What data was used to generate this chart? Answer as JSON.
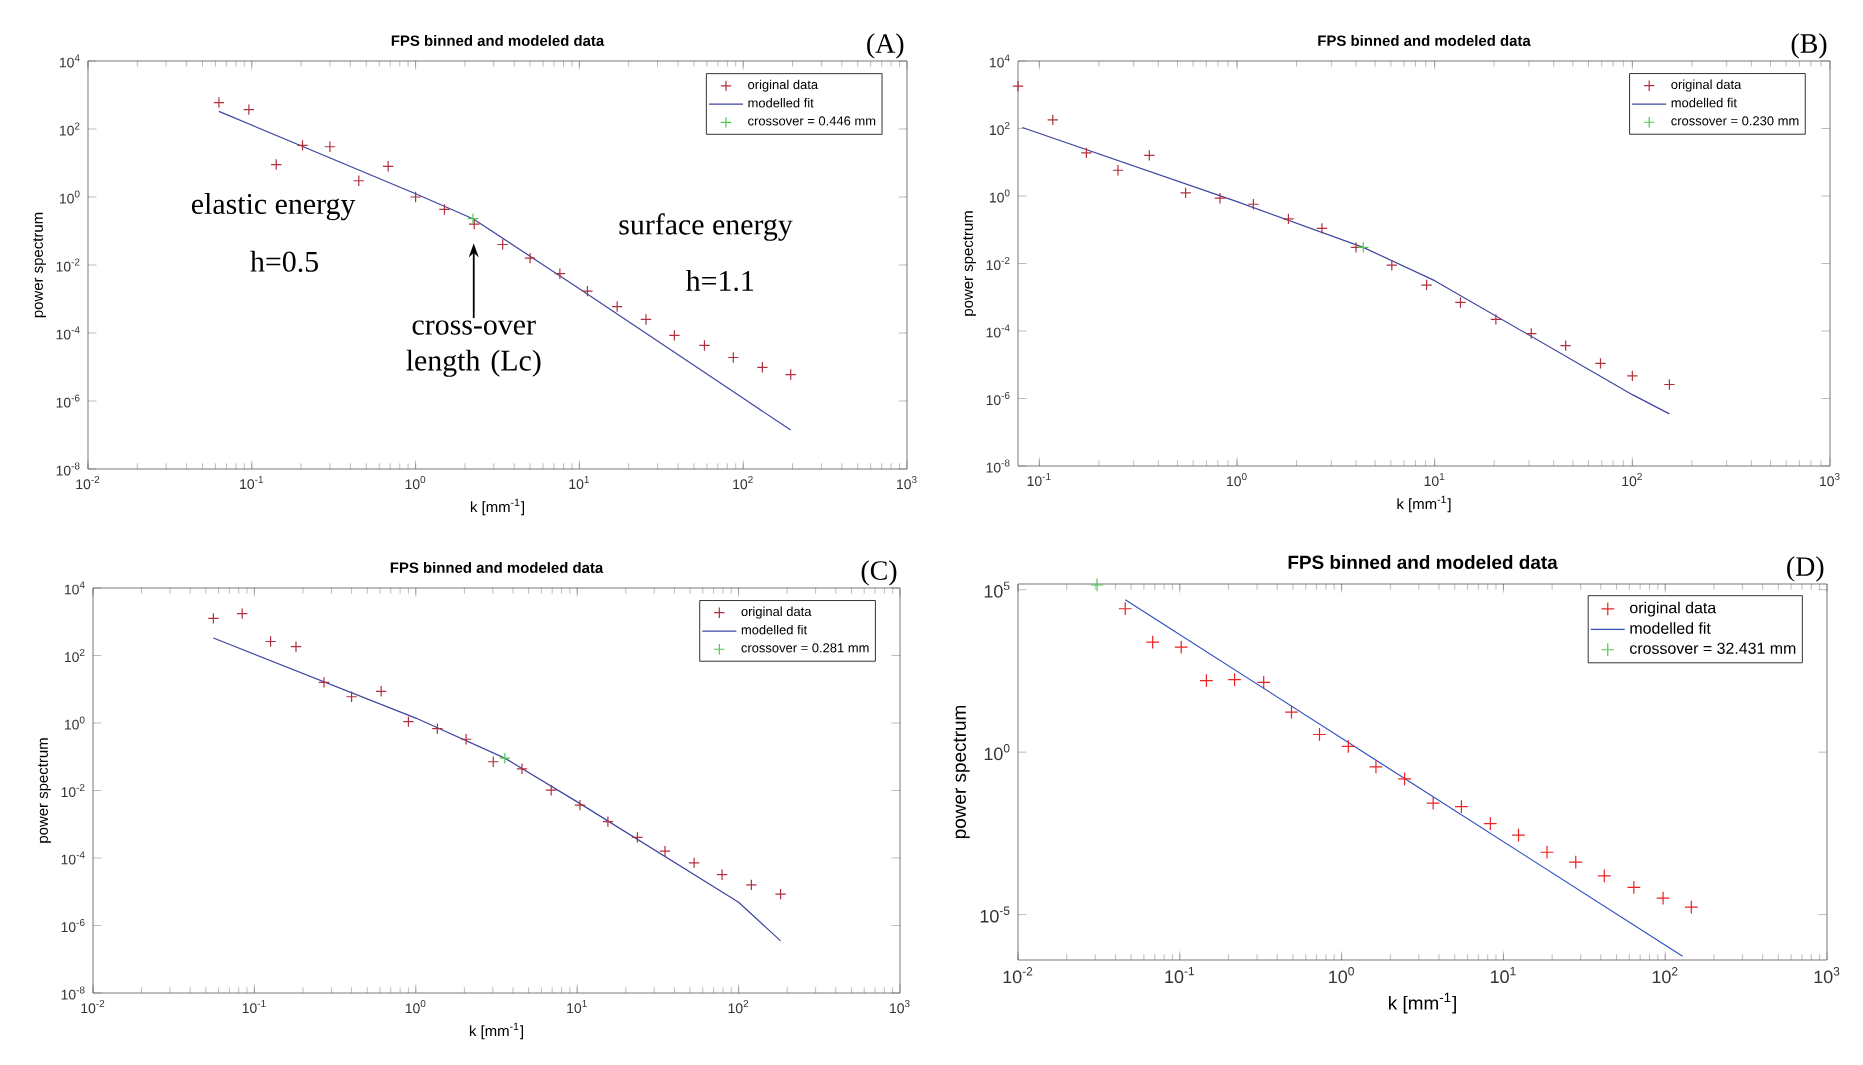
{
  "chart_data": [
    {
      "type": "scatter",
      "title": "FPS binned and modeled data",
      "xlabel": "k [mm$^{-1}$]",
      "ylabel": "power spectrum",
      "log": "xy",
      "legend": "top right",
      "xlim": [
        0.01,
        1000
      ],
      "ylim": [
        1e-08,
        10000
      ],
      "xticks": [
        {
          "value": 0.01,
          "label": "10$^{-2}$"
        },
        {
          "value": 0.1,
          "label": "10$^{-1}$"
        },
        {
          "value": 1,
          "label": "10$^{0}$"
        },
        {
          "value": 10,
          "label": "10$^{1}$"
        },
        {
          "value": 100,
          "label": "10$^{2}$"
        },
        {
          "value": 1000,
          "label": "10$^{3}$"
        }
      ],
      "yticks": [
        {
          "value": 1e-08,
          "label": "10$^{-8}$"
        },
        {
          "value": 1e-06,
          "label": "10$^{-6}$"
        },
        {
          "value": 0.0001,
          "label": "10$^{-4}$"
        },
        {
          "value": 0.01,
          "label": "10$^{-2}$"
        },
        {
          "value": 1,
          "label": "10$^{0}$"
        },
        {
          "value": 100,
          "label": "10$^{2}$"
        },
        {
          "value": 10000,
          "label": "10$^{4}$"
        }
      ],
      "series": [
        {
          "name": "original data",
          "type": "scatter",
          "marker": "cross",
          "color": "#b0303c",
          "x": [
            0.063,
            0.096,
            0.141,
            0.204,
            0.3,
            0.45,
            0.68,
            1.0,
            1.5,
            2.28,
            3.4,
            5.0,
            7.6,
            11.2,
            17,
            25.5,
            38,
            58,
            87,
            131,
            195
          ],
          "values": [
            600,
            370,
            9,
            33,
            30,
            3,
            8,
            1.0,
            0.43,
            0.16,
            0.04,
            0.016,
            0.0056,
            0.0017,
            0.0006,
            0.00025,
            8.5e-05,
            4.3e-05,
            1.9e-05,
            9.8e-06,
            6e-06
          ]
        },
        {
          "name": "modelled fit",
          "type": "line",
          "color": "#3c46a0",
          "x": [
            0.063,
            1,
            2.24,
            10,
            100,
            195
          ],
          "values": [
            330,
            1.25,
            0.23,
            0.002,
            1.2e-06,
            1.4e-07
          ]
        },
        {
          "name": "crossover = 0.446 mm",
          "type": "scatter",
          "marker": "cross",
          "color": "#50c850",
          "x": [
            2.24
          ],
          "values": [
            0.23
          ]
        }
      ],
      "annotations": [
        "(A)",
        "elastic energy",
        "h=0.5",
        "surface energy",
        "h=1.1",
        "cross-over length (Lc)"
      ]
    },
    {
      "type": "scatter",
      "title": "FPS binned and modeled data",
      "xlabel": "k [mm$^{-1}$]",
      "ylabel": "power spectrum",
      "log": "xy",
      "legend": "top right",
      "xlim": [
        0.078,
        1000
      ],
      "ylim": [
        1e-08,
        10000
      ],
      "xticks": [
        {
          "value": 0.1,
          "label": "10$^{-1}$"
        },
        {
          "value": 1,
          "label": "10$^{0}$"
        },
        {
          "value": 10,
          "label": "10$^{1}$"
        },
        {
          "value": 100,
          "label": "10$^{2}$"
        },
        {
          "value": 1000,
          "label": "10$^{3}$"
        }
      ],
      "yticks": [
        {
          "value": 1e-08,
          "label": "10$^{-8}$"
        },
        {
          "value": 1e-06,
          "label": "10$^{-6}$"
        },
        {
          "value": 0.0001,
          "label": "10$^{-4}$"
        },
        {
          "value": 0.01,
          "label": "10$^{-2}$"
        },
        {
          "value": 1,
          "label": "10$^{0}$"
        },
        {
          "value": 100,
          "label": "10$^{2}$"
        },
        {
          "value": 10000,
          "label": "10$^{4}$"
        }
      ],
      "series": [
        {
          "name": "original data",
          "type": "scatter",
          "marker": "cross",
          "color": "#b0303c",
          "x": [
            0.078,
            0.117,
            0.173,
            0.25,
            0.36,
            0.55,
            0.82,
            1.21,
            1.82,
            2.69,
            4.0,
            6.07,
            9.1,
            13.5,
            20.4,
            30.8,
            46,
            69,
            100,
            154
          ],
          "values": [
            1800,
            180,
            19,
            5.8,
            16,
            1.24,
            0.86,
            0.57,
            0.21,
            0.11,
            0.03,
            0.0089,
            0.0023,
            0.0007,
            0.00022,
            8.4e-05,
            3.7e-05,
            1.1e-05,
            4.7e-06,
            2.6e-06
          ]
        },
        {
          "name": "modelled fit",
          "type": "line",
          "color": "#3c46a0",
          "x": [
            0.082,
            1,
            4.35,
            10,
            100,
            154
          ],
          "values": [
            107,
            0.68,
            0.03,
            0.0031,
            1.3e-06,
            3.5e-07
          ]
        },
        {
          "name": "crossover = 0.230 mm",
          "type": "scatter",
          "marker": "cross",
          "color": "#50c850",
          "x": [
            4.35
          ],
          "values": [
            0.03
          ]
        }
      ],
      "annotations": [
        "(B)"
      ]
    },
    {
      "type": "scatter",
      "title": "FPS binned and modeled data",
      "xlabel": "k [mm$^{-1}$]",
      "ylabel": "power spectrum",
      "log": "xy",
      "legend": "top right",
      "xlim": [
        0.01,
        1000
      ],
      "ylim": [
        1e-08,
        10000
      ],
      "xticks": [
        {
          "value": 0.01,
          "label": "10$^{-2}$"
        },
        {
          "value": 0.1,
          "label": "10$^{-1}$"
        },
        {
          "value": 1,
          "label": "10$^{0}$"
        },
        {
          "value": 10,
          "label": "10$^{1}$"
        },
        {
          "value": 100,
          "label": "10$^{2}$"
        },
        {
          "value": 1000,
          "label": "10$^{3}$"
        }
      ],
      "yticks": [
        {
          "value": 1e-08,
          "label": "10$^{-8}$"
        },
        {
          "value": 1e-06,
          "label": "10$^{-6}$"
        },
        {
          "value": 0.0001,
          "label": "10$^{-4}$"
        },
        {
          "value": 0.01,
          "label": "10$^{-2}$"
        },
        {
          "value": 1,
          "label": "10$^{0}$"
        },
        {
          "value": 100,
          "label": "10$^{2}$"
        },
        {
          "value": 10000,
          "label": "10$^{4}$"
        }
      ],
      "series": [
        {
          "name": "original data",
          "type": "scatter",
          "marker": "cross",
          "color": "#b0303c",
          "x": [
            0.0557,
            0.084,
            0.126,
            0.181,
            0.27,
            0.4,
            0.61,
            0.9,
            1.36,
            2.05,
            3.02,
            4.55,
            6.9,
            10.4,
            15.5,
            23.6,
            35,
            53,
            79,
            120,
            182
          ],
          "values": [
            1260,
            1740,
            260,
            182,
            16,
            6,
            8.7,
            1.1,
            0.68,
            0.33,
            0.071,
            0.044,
            0.0102,
            0.0037,
            0.0012,
            0.00041,
            0.00016,
            7.2e-05,
            3.2e-05,
            1.6e-05,
            8.5e-06
          ]
        },
        {
          "name": "modelled fit",
          "type": "line",
          "color": "#3c46a0",
          "x": [
            0.0557,
            1,
            3.56,
            10,
            100,
            182
          ],
          "values": [
            330,
            1.4,
            0.091,
            0.0046,
            4.9e-06,
            3.5e-07
          ]
        },
        {
          "name": "crossover = 0.281 mm",
          "type": "scatter",
          "marker": "cross",
          "color": "#50c850",
          "x": [
            3.56
          ],
          "values": [
            0.091
          ]
        }
      ],
      "annotations": [
        "(C)"
      ]
    },
    {
      "type": "scatter",
      "title": "FPS binned and modeled data",
      "xlabel": "k [mm$^{-1}$]",
      "ylabel": "power spectrum",
      "log": "xy",
      "legend": "top right",
      "xlim": [
        0.01,
        1000
      ],
      "ylim": [
        4e-07,
        150000
      ],
      "xticks": [
        {
          "value": 0.01,
          "label": "10$^{-2}$"
        },
        {
          "value": 0.1,
          "label": "10$^{-1}$"
        },
        {
          "value": 1,
          "label": "10$^{0}$"
        },
        {
          "value": 10,
          "label": "10$^{1}$"
        },
        {
          "value": 100,
          "label": "10$^{2}$"
        },
        {
          "value": 1000,
          "label": "10$^{3}$"
        }
      ],
      "yticks": [
        {
          "value": 1e-05,
          "label": "10$^{-5}$"
        },
        {
          "value": 1,
          "label": "10$^{0}$"
        },
        {
          "value": 100000,
          "label": "10$^{5}$"
        }
      ],
      "series": [
        {
          "name": "original data",
          "type": "scatter",
          "marker": "cross",
          "color": "#ee2020",
          "x": [
            0.046,
            0.068,
            0.102,
            0.146,
            0.218,
            0.33,
            0.49,
            0.73,
            1.1,
            1.63,
            2.45,
            3.68,
            5.5,
            8.3,
            12.4,
            18.6,
            28,
            42,
            64,
            97,
            145
          ],
          "values": [
            26000,
            2450,
            1700,
            160,
            172,
            140,
            17,
            3.5,
            1.5,
            0.35,
            0.15,
            0.027,
            0.021,
            0.0063,
            0.0028,
            0.00083,
            0.00041,
            0.000155,
            6.9e-05,
            3.2e-05,
            1.7e-05
          ]
        },
        {
          "name": "modelled fit",
          "type": "line",
          "color": "#3050c0",
          "x": [
            0.046,
            128
          ],
          "values": [
            49000,
            5.2e-07
          ]
        },
        {
          "name": "crossover = 32.431 mm",
          "type": "scatter",
          "marker": "cross",
          "color": "#50c850",
          "x": [
            0.0308
          ],
          "values": [
            140000
          ]
        }
      ],
      "annotations": [
        "(D)"
      ]
    }
  ]
}
